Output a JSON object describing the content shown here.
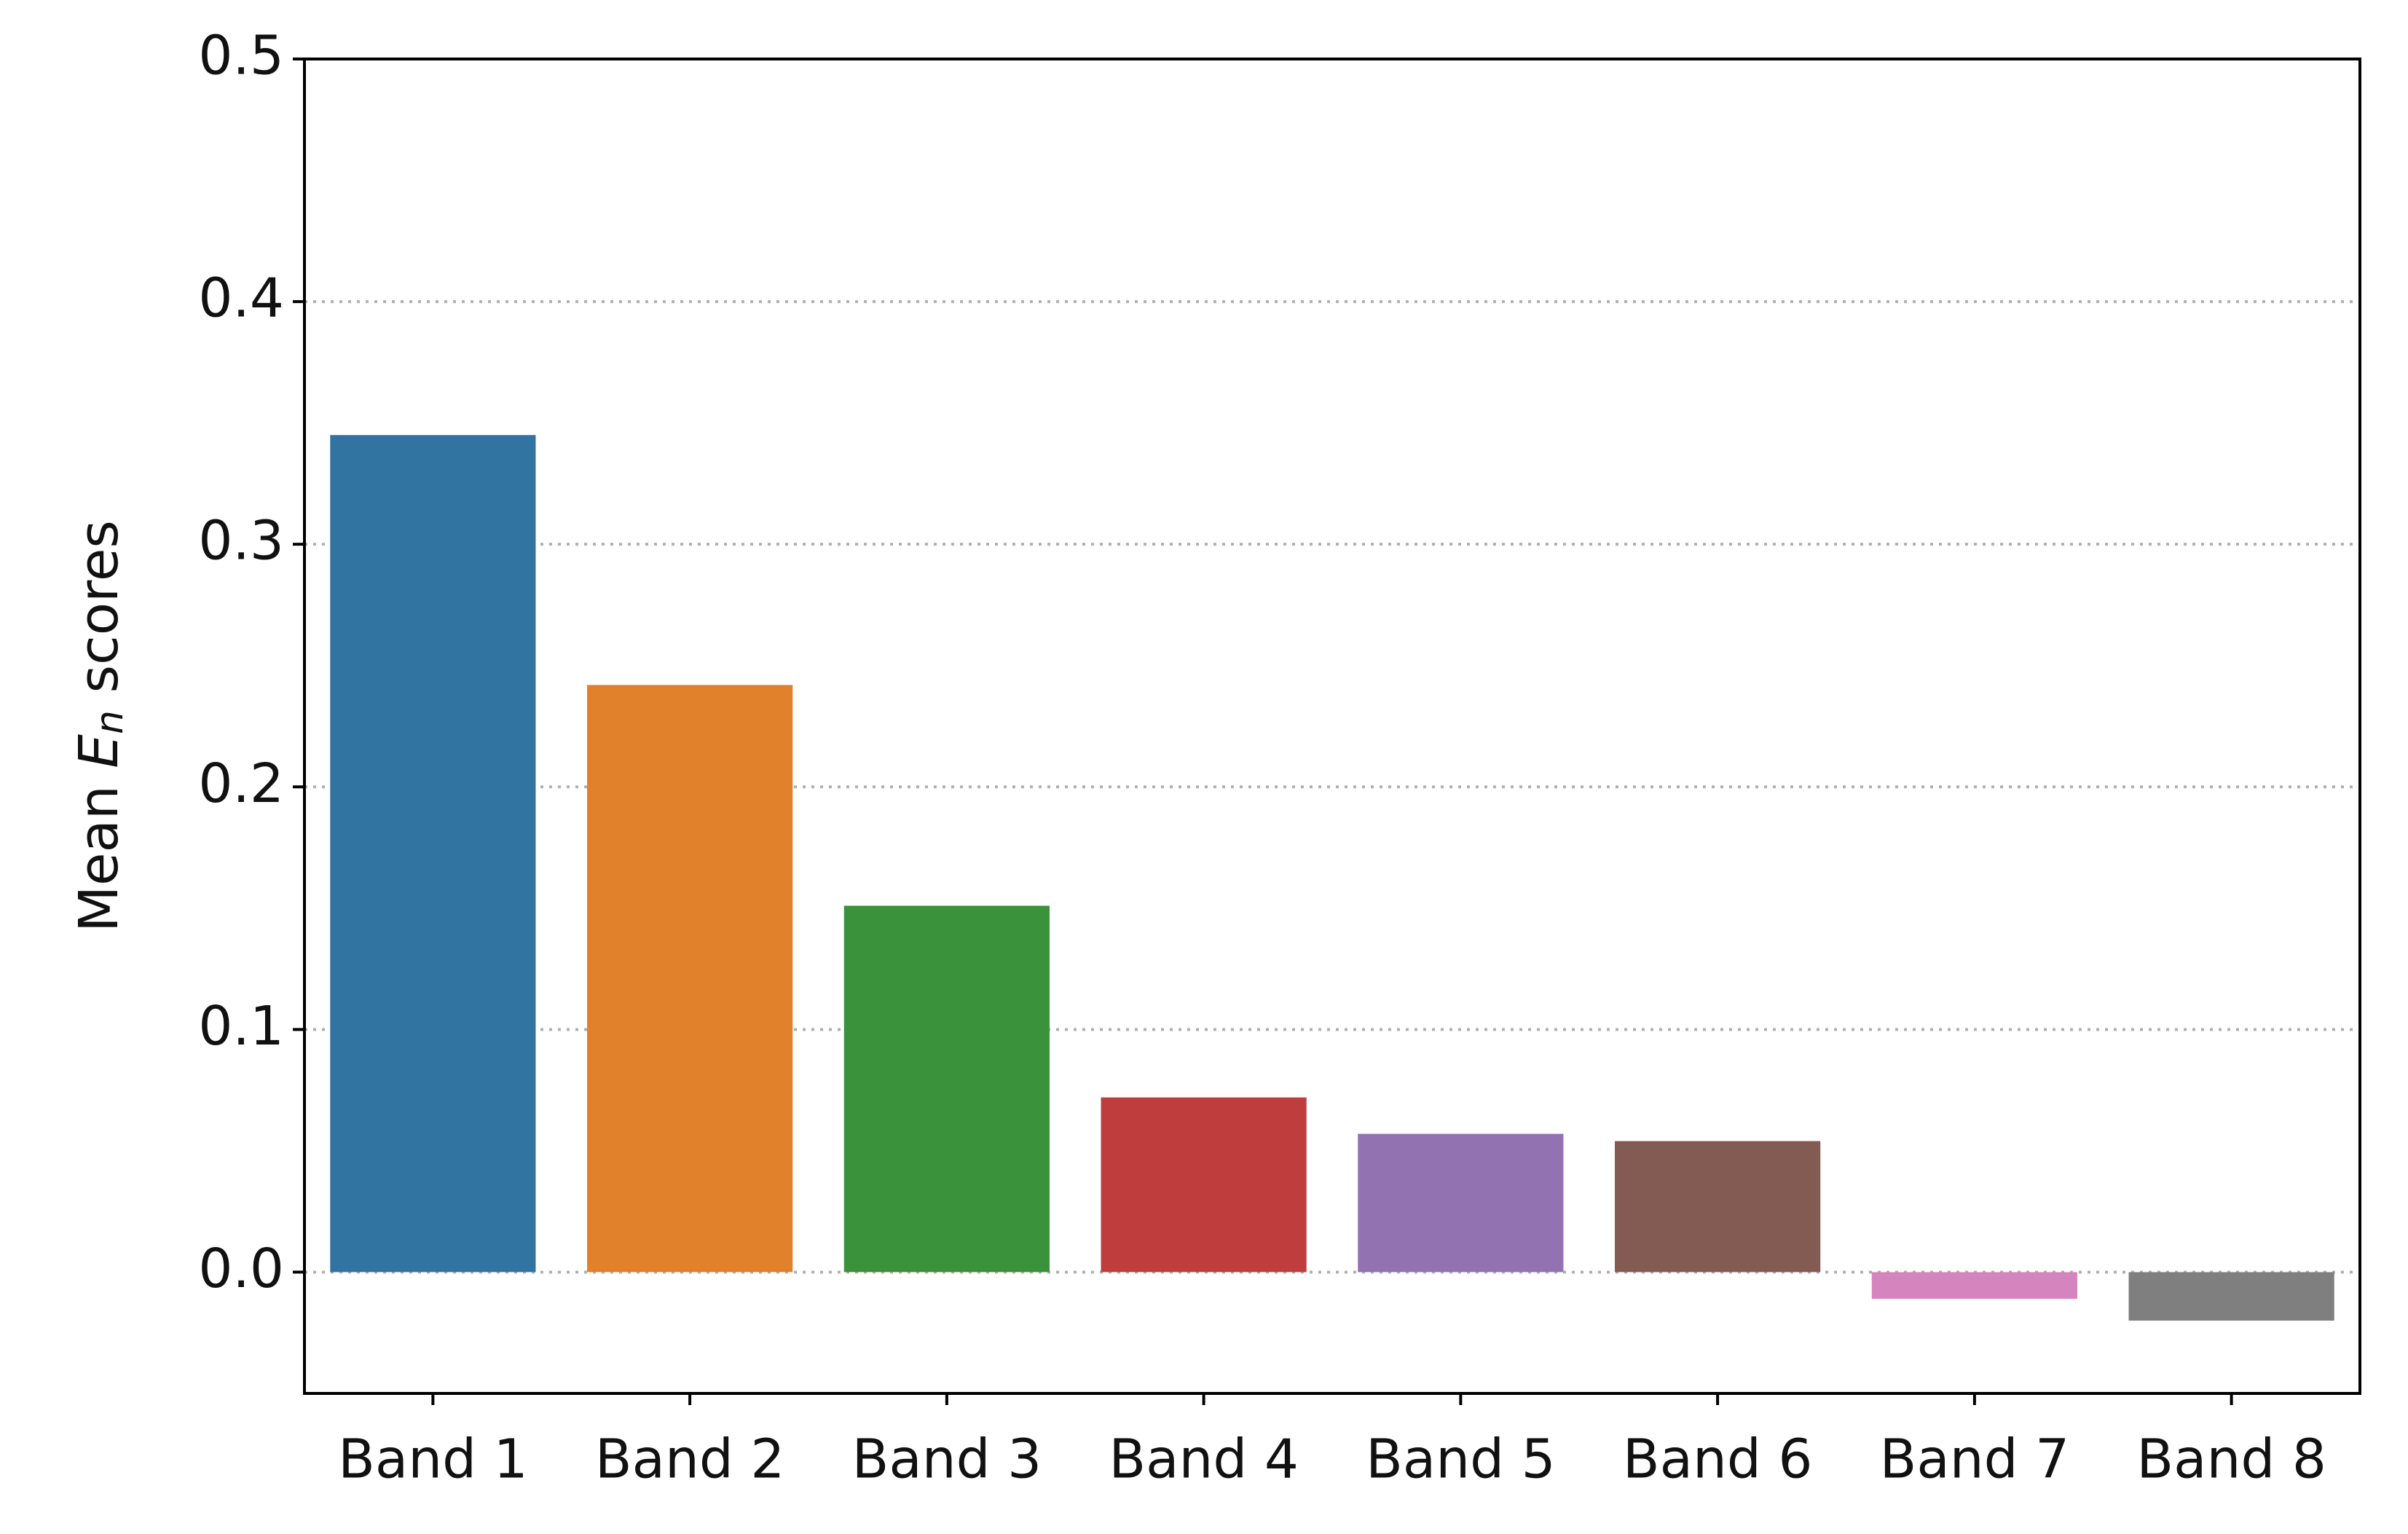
{
  "chart_data": {
    "type": "bar",
    "ylabel": [
      "Mean ",
      "E",
      "n",
      " scores"
    ],
    "categories": [
      "Band 1",
      "Band 2",
      "Band 3",
      "Band 4",
      "Band 5",
      "Band 6",
      "Band 7",
      "Band 8"
    ],
    "values": [
      0.345,
      0.242,
      0.151,
      0.072,
      0.057,
      0.054,
      -0.011,
      -0.02
    ],
    "colors": [
      "#3274a1",
      "#e1812c",
      "#3a923a",
      "#c03d3e",
      "#9372b2",
      "#845b53",
      "#d684bd",
      "#7f7f7f"
    ],
    "ylim": [
      -0.05,
      0.5
    ],
    "yticks": [
      0.0,
      0.1,
      0.2,
      0.3,
      0.4,
      0.5
    ],
    "grid": true
  }
}
